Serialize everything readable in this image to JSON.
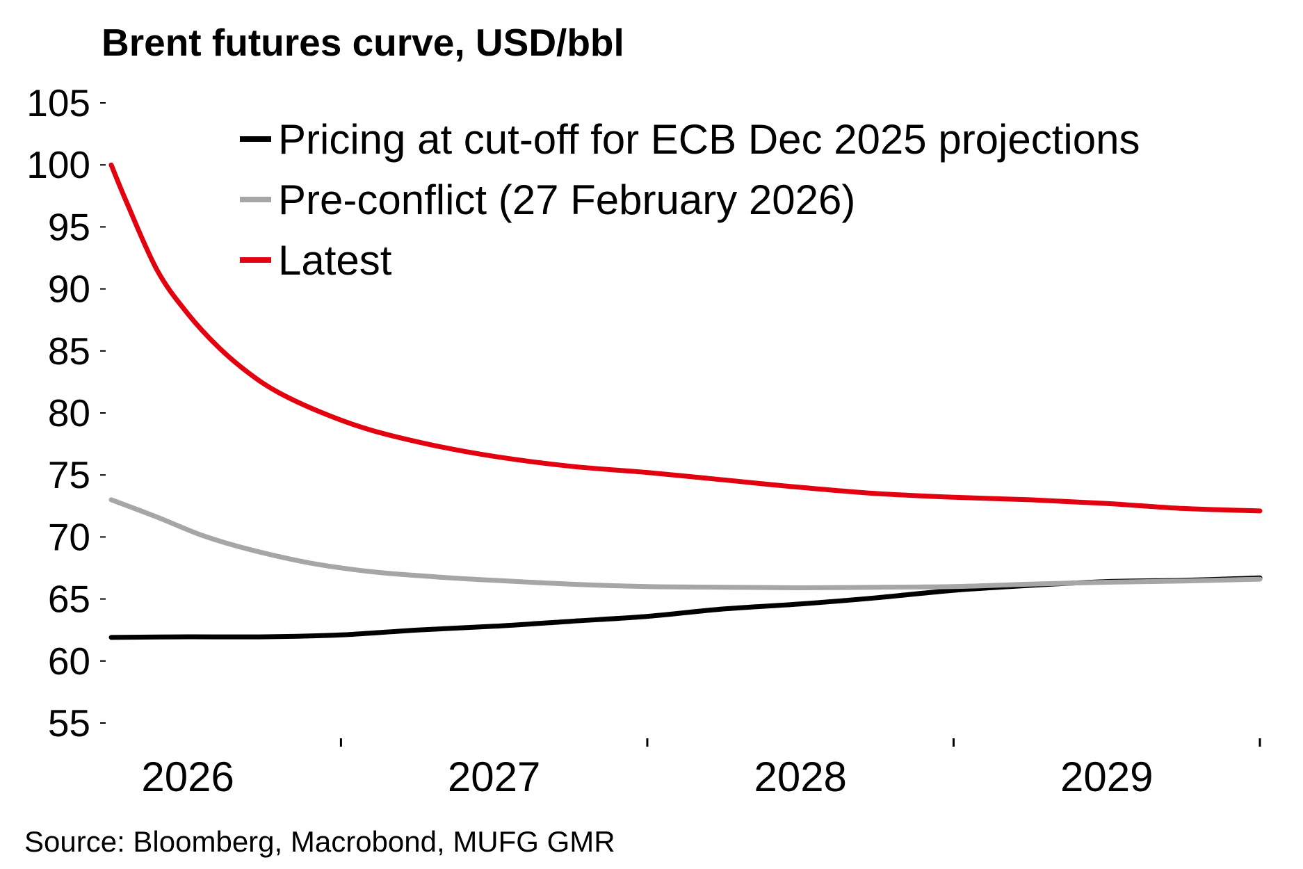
{
  "chart_data": {
    "type": "line",
    "title": "Brent futures curve, USD/bbl",
    "ylim": [
      55,
      105
    ],
    "yticks": [
      "55",
      "60",
      "65",
      "70",
      "75",
      "80",
      "85",
      "90",
      "95",
      "100",
      "105"
    ],
    "x_range": [
      2025.75,
      2029.5
    ],
    "x_tick_labels": [
      {
        "label": "2026",
        "x": 2026.0
      },
      {
        "label": "2027",
        "x": 2027.0
      },
      {
        "label": "2028",
        "x": 2028.0
      },
      {
        "label": "2029",
        "x": 2029.0
      }
    ],
    "x_tick_marks": [
      2026.5,
      2027.5,
      2028.5,
      2029.5
    ],
    "legend_position": "top-right",
    "grid": false,
    "series": [
      {
        "name": "Pricing at cut-off for ECB Dec 2025 projections",
        "color": "#000000",
        "x": [
          2025.75,
          2026.0,
          2026.25,
          2026.5,
          2026.75,
          2027.0,
          2027.25,
          2027.5,
          2027.75,
          2028.0,
          2028.25,
          2028.5,
          2028.75,
          2029.0,
          2029.25,
          2029.5
        ],
        "y": [
          61.9,
          61.95,
          61.95,
          62.1,
          62.5,
          62.8,
          63.2,
          63.6,
          64.2,
          64.6,
          65.1,
          65.7,
          66.1,
          66.4,
          66.5,
          66.7
        ]
      },
      {
        "name": "Pre-conflict (27 February 2026)",
        "color": "#a6a6a6",
        "x": [
          2025.75,
          2025.9,
          2026.05,
          2026.2,
          2026.4,
          2026.6,
          2026.8,
          2027.0,
          2027.25,
          2027.5,
          2027.75,
          2028.0,
          2028.25,
          2028.5,
          2028.75,
          2029.0,
          2029.25,
          2029.5
        ],
        "y": [
          73.0,
          71.6,
          70.1,
          69.0,
          67.9,
          67.2,
          66.8,
          66.5,
          66.2,
          66.0,
          65.95,
          65.9,
          65.95,
          66.0,
          66.2,
          66.35,
          66.45,
          66.6
        ]
      },
      {
        "name": "Latest",
        "color": "#e3000f",
        "x": [
          2025.75,
          2025.8,
          2025.9,
          2026.0,
          2026.1,
          2026.2,
          2026.3,
          2026.45,
          2026.6,
          2026.8,
          2027.0,
          2027.25,
          2027.5,
          2027.75,
          2028.0,
          2028.25,
          2028.5,
          2028.75,
          2029.0,
          2029.25,
          2029.5
        ],
        "y": [
          100.0,
          97.0,
          91.5,
          88.0,
          85.3,
          83.2,
          81.6,
          79.9,
          78.6,
          77.4,
          76.5,
          75.7,
          75.2,
          74.6,
          74.0,
          73.5,
          73.2,
          73.0,
          72.7,
          72.3,
          72.1
        ]
      }
    ]
  },
  "source": "Source: Bloomberg, Macrobond, MUFG GMR"
}
